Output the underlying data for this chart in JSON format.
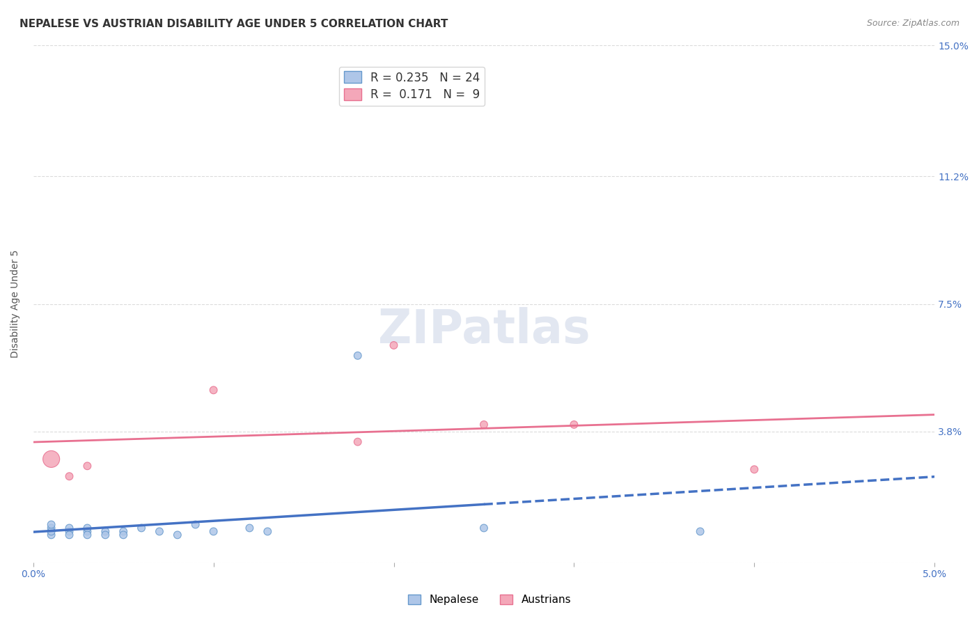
{
  "title": "NEPALESE VS AUSTRIAN DISABILITY AGE UNDER 5 CORRELATION CHART",
  "source": "Source: ZipAtlas.com",
  "ylabel": "Disability Age Under 5",
  "xlabel": "",
  "xlim": [
    0.0,
    0.05
  ],
  "ylim": [
    0.0,
    0.15
  ],
  "xticks": [
    0.0,
    0.01,
    0.02,
    0.03,
    0.04,
    0.05
  ],
  "xtick_labels": [
    "0.0%",
    "",
    "",
    "",
    "",
    "5.0%"
  ],
  "ytick_labels_right": [
    "15.0%",
    "11.2%",
    "7.5%",
    "3.8%",
    ""
  ],
  "yticks_right": [
    0.15,
    0.112,
    0.075,
    0.038,
    0.0
  ],
  "watermark": "ZIPatlas",
  "legend_entries": [
    {
      "label": "R = 0.235   N = 24",
      "color": "#aec6e8"
    },
    {
      "label": "R =  0.171   N =  9",
      "color": "#f4a7b9"
    }
  ],
  "nepalese_points": [
    [
      0.001,
      0.008
    ],
    [
      0.001,
      0.01
    ],
    [
      0.001,
      0.009
    ],
    [
      0.001,
      0.011
    ],
    [
      0.002,
      0.009
    ],
    [
      0.002,
      0.01
    ],
    [
      0.002,
      0.008
    ],
    [
      0.003,
      0.009
    ],
    [
      0.003,
      0.01
    ],
    [
      0.003,
      0.008
    ],
    [
      0.004,
      0.009
    ],
    [
      0.004,
      0.008
    ],
    [
      0.005,
      0.009
    ],
    [
      0.005,
      0.008
    ],
    [
      0.006,
      0.01
    ],
    [
      0.007,
      0.009
    ],
    [
      0.008,
      0.008
    ],
    [
      0.009,
      0.011
    ],
    [
      0.01,
      0.009
    ],
    [
      0.012,
      0.01
    ],
    [
      0.013,
      0.009
    ],
    [
      0.018,
      0.06
    ],
    [
      0.025,
      0.01
    ],
    [
      0.037,
      0.009
    ]
  ],
  "austrian_points": [
    [
      0.001,
      0.03
    ],
    [
      0.002,
      0.025
    ],
    [
      0.003,
      0.028
    ],
    [
      0.01,
      0.05
    ],
    [
      0.018,
      0.035
    ],
    [
      0.02,
      0.063
    ],
    [
      0.025,
      0.04
    ],
    [
      0.03,
      0.04
    ],
    [
      0.04,
      0.027
    ]
  ],
  "nepalese_sizes": [
    60,
    60,
    60,
    60,
    60,
    60,
    60,
    60,
    60,
    60,
    60,
    60,
    60,
    60,
    60,
    60,
    60,
    60,
    60,
    60,
    60,
    60,
    60,
    60
  ],
  "austrian_sizes": [
    300,
    60,
    60,
    60,
    60,
    60,
    60,
    60,
    60
  ],
  "nepalese_color": "#aec6e8",
  "austrian_color": "#f4a7b9",
  "nepalese_edge": "#6699cc",
  "austrian_edge": "#e87090",
  "blue_line_color": "#4472c4",
  "pink_line_color": "#e87090",
  "grid_color": "#cccccc",
  "background_color": "#ffffff",
  "title_fontsize": 11,
  "axis_label_fontsize": 10,
  "tick_fontsize": 10,
  "watermark_fontsize": 48
}
